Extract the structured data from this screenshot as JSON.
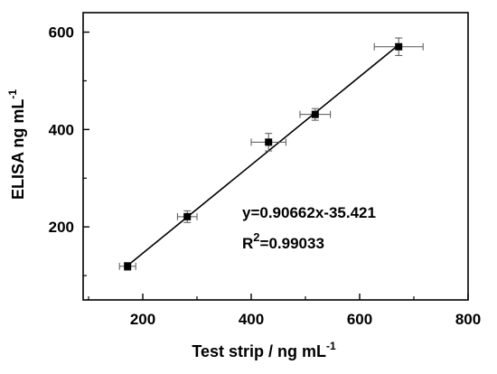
{
  "chart_data": {
    "type": "scatter",
    "xlabel": "Test strip / ng mL",
    "xlabel_sup": "-1",
    "ylabel": "ELISA ng mL",
    "ylabel_sup": "-1",
    "xlim": [
      90,
      800
    ],
    "ylim": [
      50,
      640
    ],
    "xticks": [
      200,
      400,
      600,
      800
    ],
    "yticks": [
      200,
      400,
      600
    ],
    "x_tick_labels": [
      "200",
      "400",
      "600",
      "800"
    ],
    "y_tick_labels": [
      "200",
      "400",
      "600"
    ],
    "grid": false,
    "points": [
      {
        "x": 172,
        "y": 119,
        "x_err": 15,
        "y_err": 8
      },
      {
        "x": 282,
        "y": 221,
        "x_err": 18,
        "y_err": 12
      },
      {
        "x": 432,
        "y": 374,
        "x_err": 32,
        "y_err": 18
      },
      {
        "x": 518,
        "y": 431,
        "x_err": 28,
        "y_err": 12
      },
      {
        "x": 672,
        "y": 570,
        "x_err": 45,
        "y_err": 18
      }
    ],
    "fit_line": {
      "slope": 0.90662,
      "intercept": -35.421,
      "x_range": [
        172,
        672
      ]
    },
    "annotations": {
      "equation": "y=0.90662x-35.421",
      "r2_label": "R",
      "r2_sup": "2",
      "r2_value": "=0.99033"
    }
  }
}
